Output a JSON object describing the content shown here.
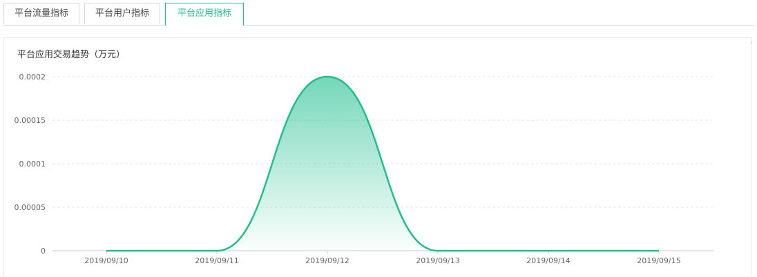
{
  "tabs": [
    {
      "label": "平台流量指标",
      "active": false
    },
    {
      "label": "平台用户指标",
      "active": false
    },
    {
      "label": "平台应用指标",
      "active": true
    }
  ],
  "colors": {
    "accent": "#1fbf8c",
    "grid": "#e6e6e6",
    "axis": "#cccccc",
    "tick_text": "#666666"
  },
  "chart_data": {
    "type": "area",
    "title": "平台应用交易趋势（万元）",
    "x": [
      "2019/09/10",
      "2019/09/11",
      "2019/09/12",
      "2019/09/13",
      "2019/09/14",
      "2019/09/15"
    ],
    "series": [
      {
        "values": [
          0,
          0,
          0.0002,
          0,
          0,
          0
        ]
      }
    ],
    "ylim": [
      0,
      0.0002
    ],
    "yticks": [
      "0",
      "0.00005",
      "0.0001",
      "0.00015",
      "0.0002"
    ],
    "grid": true,
    "smooth": true
  }
}
